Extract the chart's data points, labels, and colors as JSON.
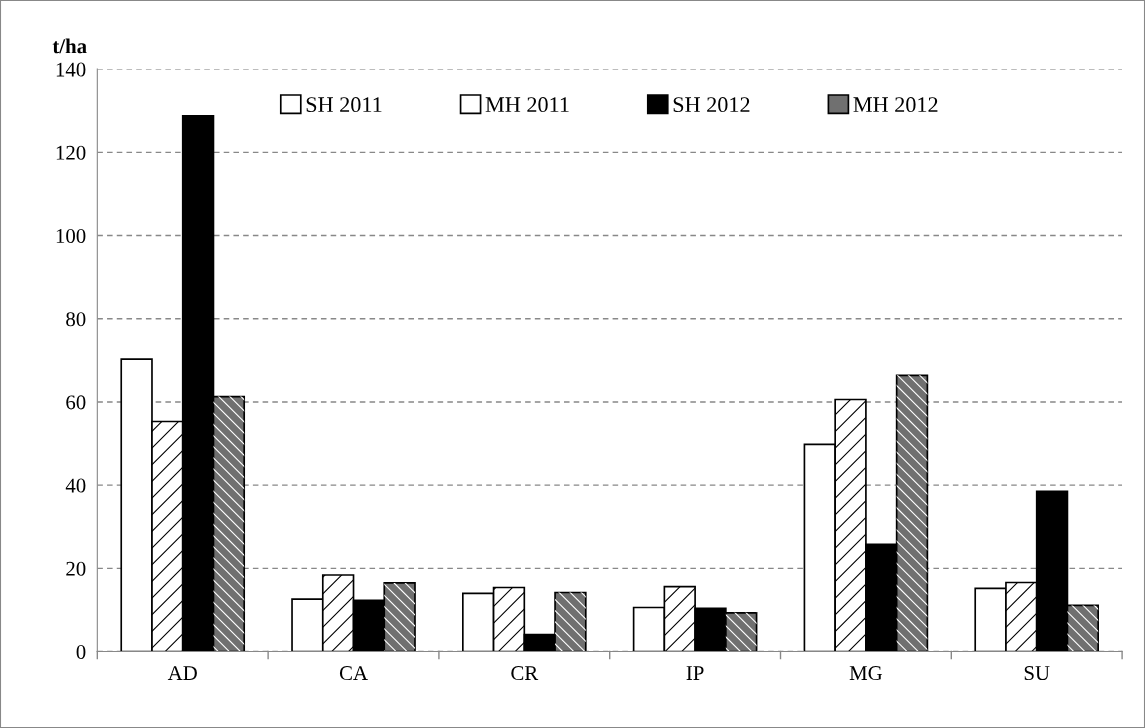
{
  "chart_data": {
    "type": "bar",
    "ylabel": "t/ha",
    "categories": [
      "AD",
      "CA",
      "CR",
      "IP",
      "MG",
      "SU"
    ],
    "series": [
      {
        "name": "SH 2011",
        "color": "#ffffff",
        "values": [
          70.3,
          12.6,
          14.0,
          10.6,
          49.8,
          15.2
        ]
      },
      {
        "name": "MH 2011",
        "color": "#ffffff",
        "values": [
          55.3,
          18.4,
          15.4,
          15.6,
          60.6,
          16.6
        ]
      },
      {
        "name": "SH 2012",
        "color": "#000000",
        "values": [
          128.8,
          12.3,
          4.1,
          10.4,
          25.8,
          38.5
        ]
      },
      {
        "name": "MH 2012",
        "color": "#707070",
        "values": [
          61.3,
          16.5,
          14.2,
          9.3,
          66.4,
          11.1
        ]
      }
    ],
    "ylim": [
      0,
      140
    ],
    "yticks": [
      0,
      20,
      40,
      60,
      80,
      100,
      120,
      140
    ],
    "grid": "y",
    "legend": "top"
  }
}
